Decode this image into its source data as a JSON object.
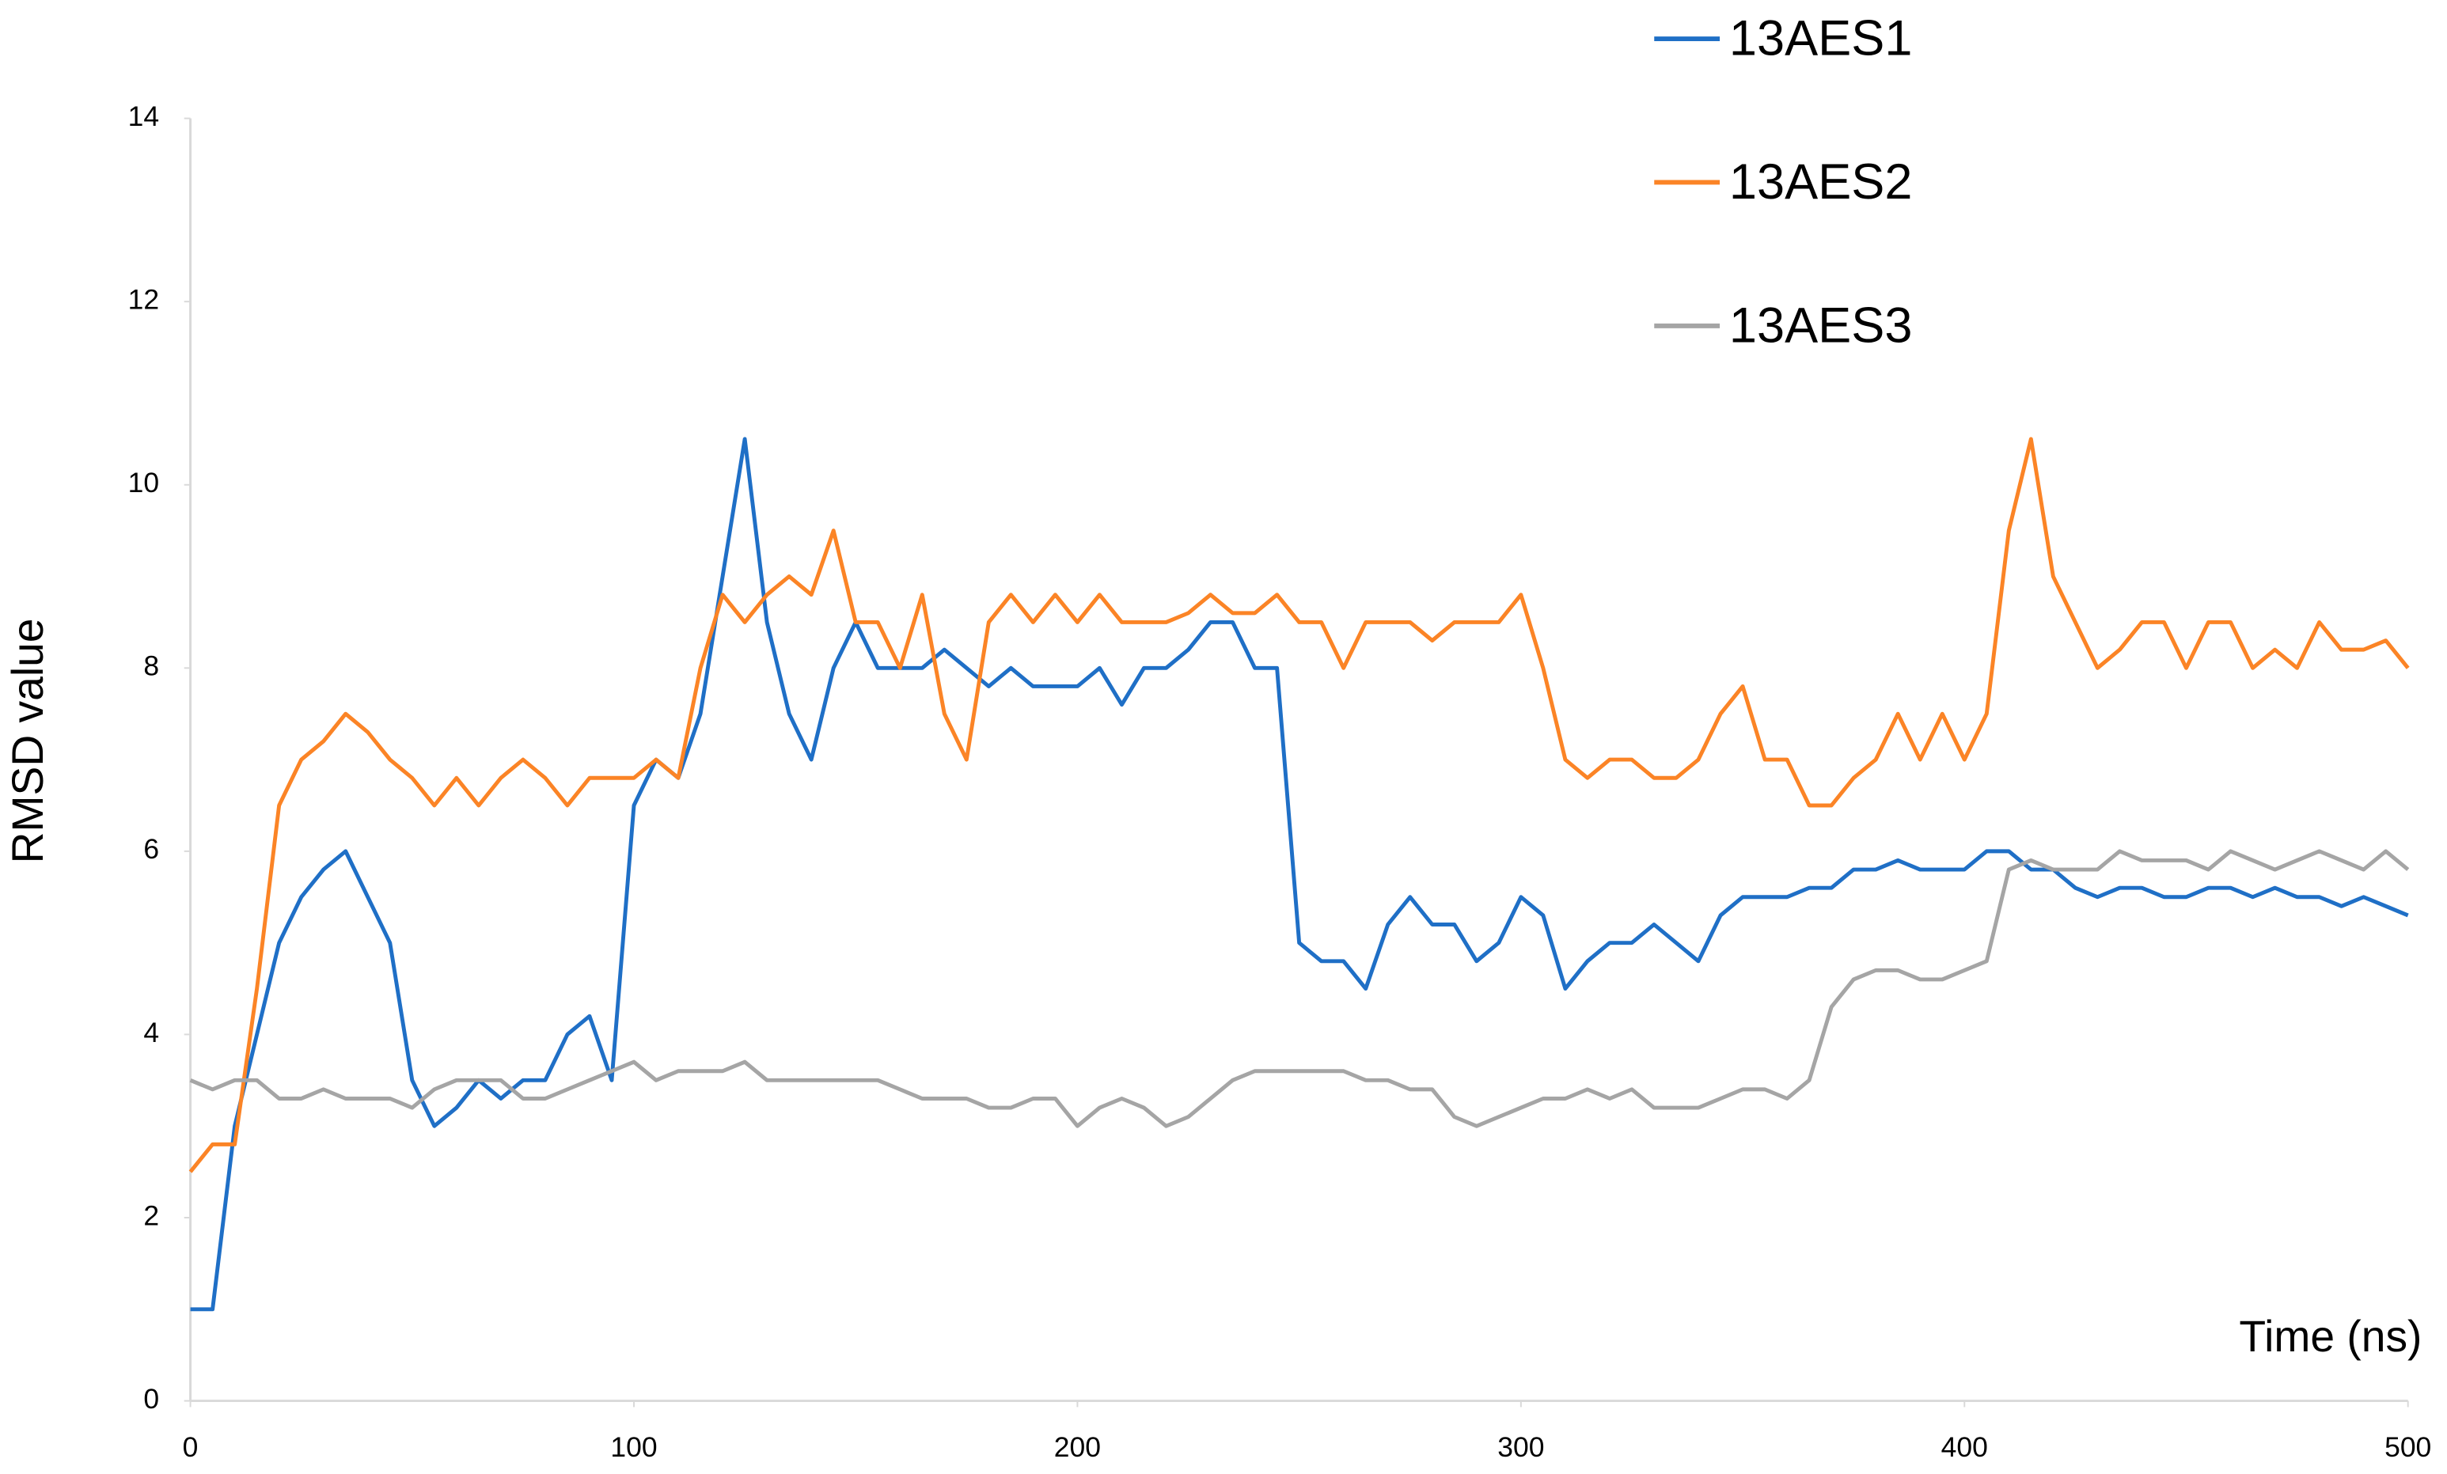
{
  "chart_data": {
    "type": "line",
    "x_label": "Time (ns)",
    "y_label": "RMSD value",
    "xlim": [
      0,
      500
    ],
    "ylim": [
      0,
      14
    ],
    "xticks": [
      0,
      100,
      200,
      300,
      400,
      500
    ],
    "yticks": [
      0,
      2,
      4,
      6,
      8,
      10,
      12,
      14
    ],
    "grid": false,
    "legend": "top-right",
    "x": [
      0,
      5,
      10,
      15,
      20,
      25,
      30,
      35,
      40,
      45,
      50,
      55,
      60,
      65,
      70,
      75,
      80,
      85,
      90,
      95,
      100,
      105,
      110,
      115,
      120,
      125,
      130,
      135,
      140,
      145,
      150,
      155,
      160,
      165,
      170,
      175,
      180,
      185,
      190,
      195,
      200,
      205,
      210,
      215,
      220,
      225,
      230,
      235,
      240,
      245,
      250,
      255,
      260,
      265,
      270,
      275,
      280,
      285,
      290,
      295,
      300,
      305,
      310,
      315,
      320,
      325,
      330,
      335,
      340,
      345,
      350,
      355,
      360,
      365,
      370,
      375,
      380,
      385,
      390,
      395,
      400,
      405,
      410,
      415,
      420,
      425,
      430,
      435,
      440,
      445,
      450,
      455,
      460,
      465,
      470,
      475,
      480,
      485,
      490,
      495,
      500
    ],
    "series": [
      {
        "name": "13AES1",
        "color": "#1f6fc6",
        "values": [
          1.0,
          1.0,
          3.0,
          4.0,
          5.0,
          5.5,
          5.8,
          6.0,
          5.5,
          5.0,
          3.5,
          3.0,
          3.2,
          3.5,
          3.3,
          3.5,
          3.5,
          4.0,
          4.2,
          3.5,
          6.5,
          7.0,
          6.8,
          7.5,
          9.0,
          10.5,
          8.5,
          7.5,
          7.0,
          8.0,
          8.5,
          8.0,
          8.0,
          8.0,
          8.2,
          8.0,
          7.8,
          8.0,
          7.8,
          7.8,
          7.8,
          8.0,
          7.6,
          8.0,
          8.0,
          8.2,
          8.5,
          8.5,
          8.0,
          8.0,
          5.0,
          4.8,
          4.8,
          4.5,
          5.2,
          5.5,
          5.2,
          5.2,
          4.8,
          5.0,
          5.5,
          5.3,
          4.5,
          4.8,
          5.0,
          5.0,
          5.2,
          5.0,
          4.8,
          5.3,
          5.5,
          5.5,
          5.5,
          5.6,
          5.6,
          5.8,
          5.8,
          5.9,
          5.8,
          5.8,
          5.8,
          6.0,
          6.0,
          5.8,
          5.8,
          5.6,
          5.5,
          5.6,
          5.6,
          5.5,
          5.5,
          5.6,
          5.6,
          5.5,
          5.6,
          5.5,
          5.5,
          5.4,
          5.5,
          5.4,
          5.3
        ]
      },
      {
        "name": "13AES2",
        "color": "#fb8426",
        "values": [
          2.5,
          2.8,
          2.8,
          4.5,
          6.5,
          7.0,
          7.2,
          7.5,
          7.3,
          7.0,
          6.8,
          6.5,
          6.8,
          6.5,
          6.8,
          7.0,
          6.8,
          6.5,
          6.8,
          6.8,
          6.8,
          7.0,
          6.8,
          8.0,
          8.8,
          8.5,
          8.8,
          9.0,
          8.8,
          9.5,
          8.5,
          8.5,
          8.0,
          8.8,
          7.5,
          7.0,
          8.5,
          8.8,
          8.5,
          8.8,
          8.5,
          8.8,
          8.5,
          8.5,
          8.5,
          8.6,
          8.8,
          8.6,
          8.6,
          8.8,
          8.5,
          8.5,
          8.0,
          8.5,
          8.5,
          8.5,
          8.3,
          8.5,
          8.5,
          8.5,
          8.8,
          8.0,
          7.0,
          6.8,
          7.0,
          7.0,
          6.8,
          6.8,
          7.0,
          7.5,
          7.8,
          7.0,
          7.0,
          6.5,
          6.5,
          6.8,
          7.0,
          7.5,
          7.0,
          7.5,
          7.0,
          7.5,
          9.5,
          10.5,
          9.0,
          8.5,
          8.0,
          8.2,
          8.5,
          8.5,
          8.0,
          8.5,
          8.5,
          8.0,
          8.2,
          8.0,
          8.5,
          8.2,
          8.2,
          8.3,
          8.0
        ]
      },
      {
        "name": "13AES3",
        "color": "#a5a5a5",
        "values": [
          3.5,
          3.4,
          3.5,
          3.5,
          3.3,
          3.3,
          3.4,
          3.3,
          3.3,
          3.3,
          3.2,
          3.4,
          3.5,
          3.5,
          3.5,
          3.3,
          3.3,
          3.4,
          3.5,
          3.6,
          3.7,
          3.5,
          3.6,
          3.6,
          3.6,
          3.7,
          3.5,
          3.5,
          3.5,
          3.5,
          3.5,
          3.5,
          3.4,
          3.3,
          3.3,
          3.3,
          3.2,
          3.2,
          3.3,
          3.3,
          3.0,
          3.2,
          3.3,
          3.2,
          3.0,
          3.1,
          3.3,
          3.5,
          3.6,
          3.6,
          3.6,
          3.6,
          3.6,
          3.5,
          3.5,
          3.4,
          3.4,
          3.1,
          3.0,
          3.1,
          3.2,
          3.3,
          3.3,
          3.4,
          3.3,
          3.4,
          3.2,
          3.2,
          3.2,
          3.3,
          3.4,
          3.4,
          3.3,
          3.5,
          4.3,
          4.6,
          4.7,
          4.7,
          4.6,
          4.6,
          4.7,
          4.8,
          5.8,
          5.9,
          5.8,
          5.8,
          5.8,
          6.0,
          5.9,
          5.9,
          5.9,
          5.8,
          6.0,
          5.9,
          5.8,
          5.9,
          6.0,
          5.9,
          5.8,
          6.0,
          5.8
        ]
      }
    ]
  }
}
